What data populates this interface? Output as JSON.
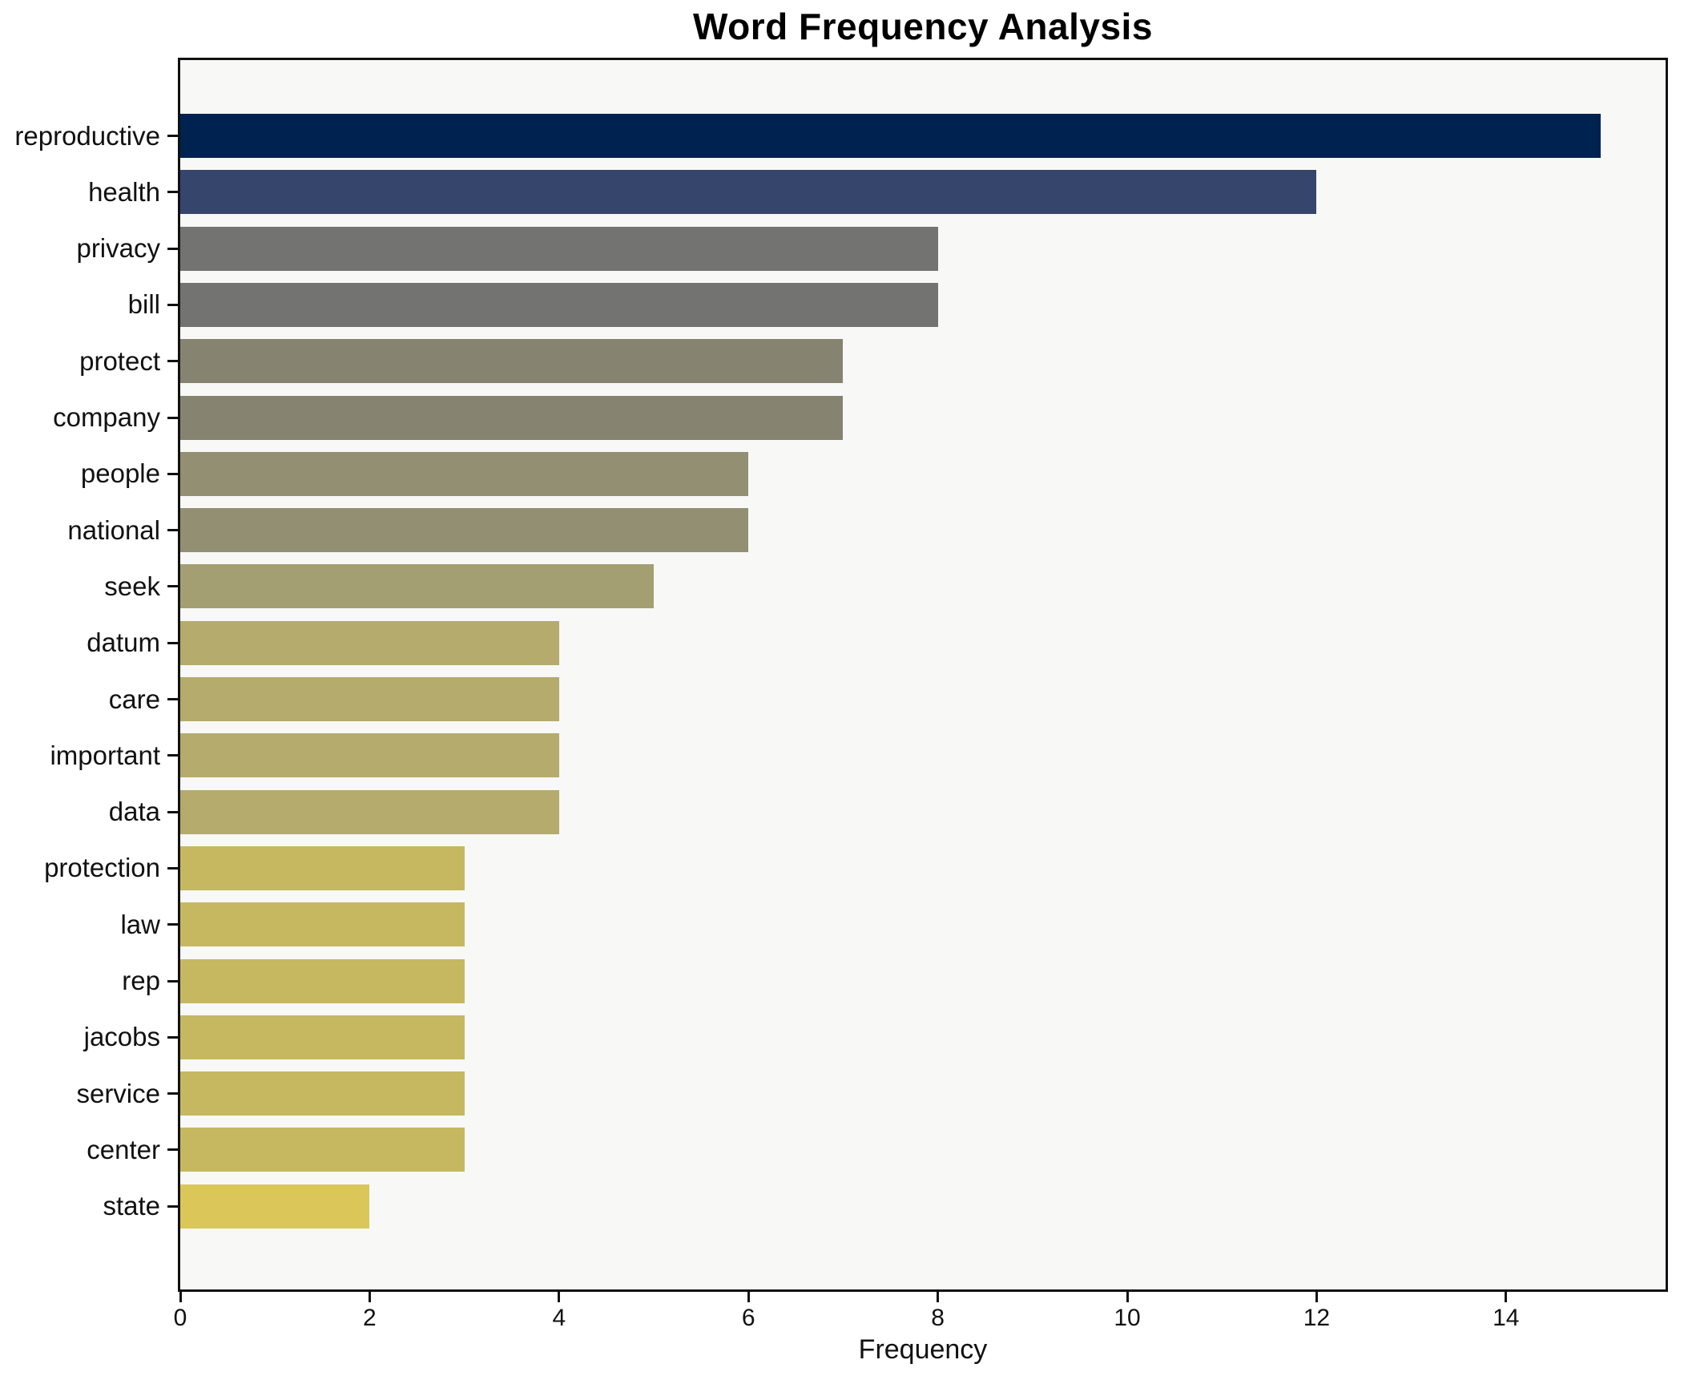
{
  "chart_data": {
    "type": "bar",
    "orientation": "horizontal",
    "title": "Word Frequency Analysis",
    "xlabel": "Frequency",
    "ylabel": "",
    "categories": [
      "reproductive",
      "health",
      "privacy",
      "bill",
      "protect",
      "company",
      "people",
      "national",
      "seek",
      "datum",
      "care",
      "important",
      "data",
      "protection",
      "law",
      "rep",
      "jacobs",
      "service",
      "center",
      "state"
    ],
    "values": [
      15,
      12,
      8,
      8,
      7,
      7,
      6,
      6,
      5,
      4,
      4,
      4,
      4,
      3,
      3,
      3,
      3,
      3,
      3,
      2
    ],
    "bar_colors": [
      "#002250",
      "#36456b",
      "#737372",
      "#737372",
      "#868371",
      "#868371",
      "#938f73",
      "#938f73",
      "#a49f72",
      "#b4ab6c",
      "#b4ab6c",
      "#b4ab6c",
      "#b4ab6c",
      "#c5b860",
      "#c5b860",
      "#c5b860",
      "#c5b860",
      "#c5b860",
      "#c5b860",
      "#dbc65a"
    ],
    "x_ticks": [
      0,
      2,
      4,
      6,
      8,
      10,
      12,
      14
    ],
    "xlim": [
      0,
      15.7
    ],
    "grid": false,
    "legend": "none",
    "plot_background": "#f8f8f7",
    "figure_background": "#ffffff",
    "spine_color": "#111111",
    "colormap": "cividis"
  }
}
